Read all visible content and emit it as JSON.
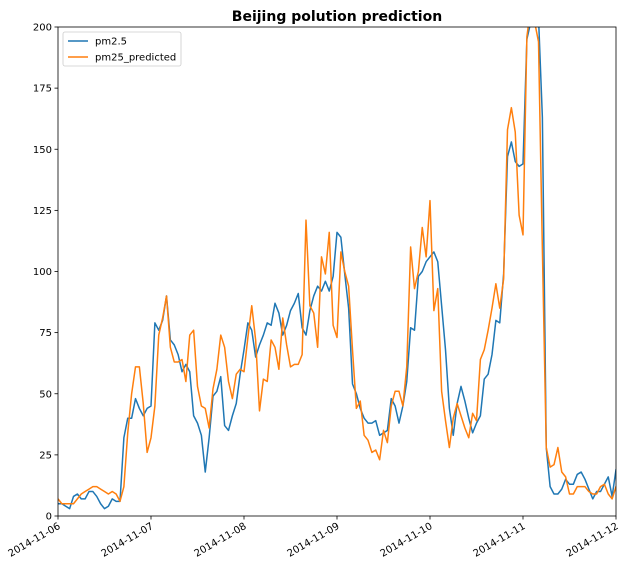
{
  "chart_data": {
    "type": "line",
    "title": "Beijing polution prediction",
    "xlabel": "",
    "ylabel": "",
    "ylim": [
      0,
      200
    ],
    "y_ticks": [
      0,
      25,
      50,
      75,
      100,
      125,
      150,
      175,
      200
    ],
    "x_range": [
      "2014-11-06T00:00",
      "2014-11-12T00:00"
    ],
    "x_ticks": [
      "2014-11-06",
      "2014-11-07",
      "2014-11-08",
      "2014-11-09",
      "2014-11-10",
      "2014-11-11",
      "2014-11-12"
    ],
    "legend_position": "top-left",
    "grid": false,
    "sampling": "hourly",
    "series": [
      {
        "name": "pm2.5",
        "color": "#1f77b4",
        "values": [
          5,
          5,
          4,
          3,
          8,
          9,
          7,
          7,
          10,
          10,
          8,
          5,
          3,
          4,
          7,
          6,
          6,
          32,
          40,
          40,
          48,
          44,
          41,
          44,
          45,
          79,
          76,
          80,
          90,
          72,
          70,
          66,
          59,
          62,
          59,
          41,
          38,
          33,
          18,
          32,
          49,
          51,
          57,
          37,
          35,
          41,
          46,
          58,
          68,
          79,
          76,
          65,
          70,
          74,
          79,
          78,
          87,
          83,
          74,
          78,
          84,
          87,
          91,
          77,
          74,
          84,
          90,
          94,
          92,
          96,
          92,
          98,
          116,
          114,
          99,
          85,
          54,
          50,
          44,
          40,
          38,
          38,
          39,
          33,
          34,
          35,
          48,
          45,
          38,
          45,
          55,
          77,
          76,
          98,
          100,
          104,
          106,
          108,
          104,
          86,
          68,
          44,
          33,
          46,
          53,
          47,
          40,
          34,
          38,
          41,
          56,
          58,
          66,
          80,
          79,
          99,
          147,
          153,
          145,
          143,
          144,
          195,
          202,
          206,
          204,
          163,
          28,
          12,
          9,
          9,
          11,
          15,
          13,
          13,
          17,
          18,
          15,
          11,
          7,
          10,
          10,
          13,
          16,
          8,
          19,
          6,
          10,
          9
        ]
      },
      {
        "name": "pm25_predicted",
        "color": "#ff7f0e",
        "values": [
          7,
          5,
          5,
          5,
          5,
          7,
          9,
          10,
          11,
          12,
          12,
          11,
          10,
          9,
          10,
          9,
          6,
          12,
          34,
          50,
          61,
          61,
          46,
          26,
          32,
          45,
          74,
          81,
          90,
          69,
          63,
          63,
          64,
          55,
          74,
          76,
          53,
          45,
          44,
          36,
          52,
          60,
          74,
          69,
          55,
          48,
          58,
          60,
          59,
          73,
          86,
          72,
          43,
          56,
          55,
          72,
          69,
          60,
          81,
          70,
          61,
          62,
          62,
          66,
          121,
          86,
          83,
          69,
          106,
          99,
          116,
          78,
          73,
          108,
          100,
          94,
          68,
          44,
          47,
          33,
          31,
          26,
          27,
          23,
          35,
          30,
          45,
          51,
          51,
          45,
          61,
          110,
          93,
          100,
          118,
          106,
          129,
          84,
          93,
          51,
          39,
          28,
          40,
          46,
          41,
          36,
          32,
          42,
          39,
          64,
          68,
          76,
          85,
          95,
          85,
          97,
          158,
          167,
          157,
          123,
          115,
          196,
          208,
          202,
          194,
          109,
          28,
          20,
          21,
          28,
          18,
          16,
          9,
          9,
          12,
          12,
          12,
          10,
          9,
          9,
          12,
          13,
          9,
          7,
          12,
          6,
          12,
          8
        ]
      }
    ]
  }
}
